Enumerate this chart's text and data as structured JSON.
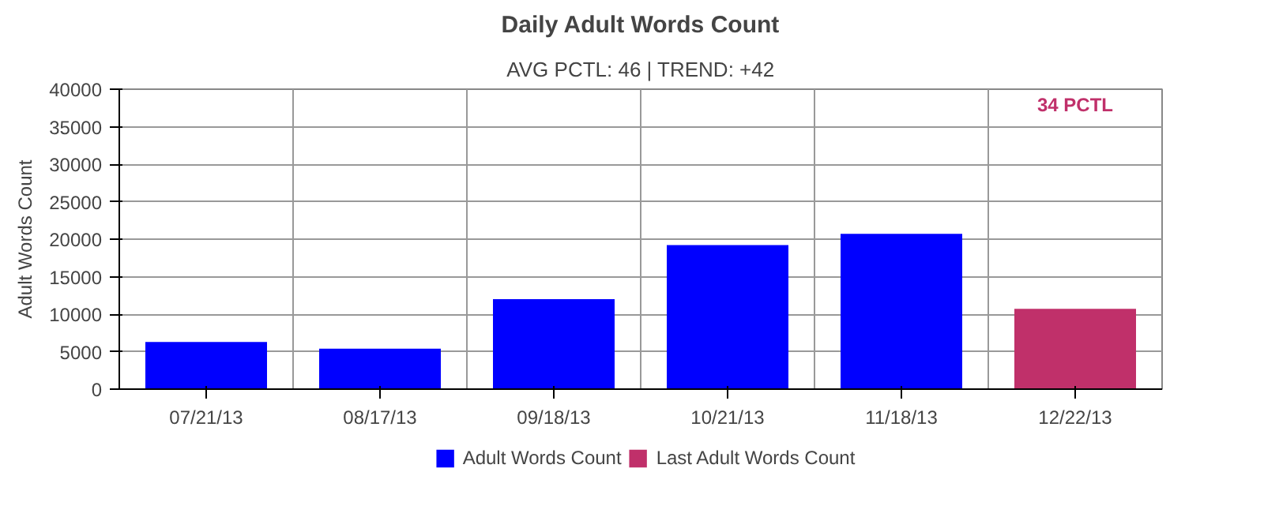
{
  "chart_data": {
    "type": "bar",
    "title": "Daily Adult Words Count",
    "subtitle": "AVG PCTL: 46 | TREND: +42",
    "ylabel": "Adult Words Count",
    "categories": [
      "07/21/13",
      "08/17/13",
      "09/18/13",
      "10/21/13",
      "11/18/13",
      "12/22/13"
    ],
    "series": [
      {
        "name": "Adult Words Count",
        "color": "#0000ff",
        "values": [
          6300,
          5400,
          12000,
          19200,
          20700,
          null
        ]
      },
      {
        "name": "Last Adult Words Count",
        "color": "#c0306a",
        "values": [
          null,
          null,
          null,
          null,
          null,
          10700
        ]
      }
    ],
    "annotations": [
      "34 PCTL"
    ],
    "ylim": [
      0,
      40000
    ],
    "yticks": [
      0,
      5000,
      10000,
      15000,
      20000,
      25000,
      30000,
      35000,
      40000
    ],
    "grid": true,
    "legend": "bottom"
  }
}
